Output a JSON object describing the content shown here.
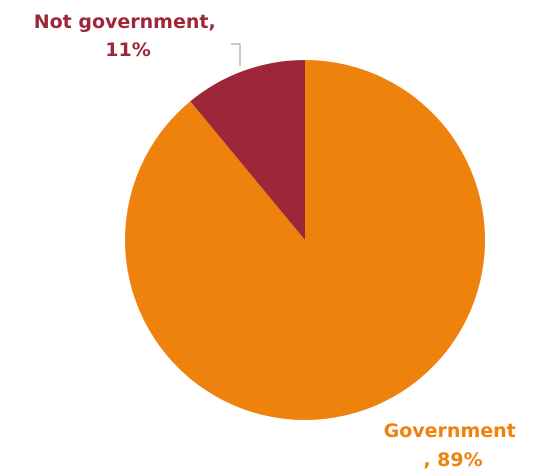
{
  "chart_data": {
    "type": "pie",
    "title": "",
    "categories": [
      "Government",
      "Not government"
    ],
    "values": [
      89,
      11
    ],
    "unit": "%",
    "colors": [
      "#EE820C",
      "#9E2639"
    ],
    "label_colors": [
      "#EE820C",
      "#9E2639"
    ],
    "data_labels": [
      {
        "line1": "Government",
        "line2": ", 89%"
      },
      {
        "line1": "Not government,",
        "line2": "11%"
      }
    ],
    "start_angle": "12 o'clock",
    "direction": "clockwise",
    "legend": "none",
    "leader_line_color": "#A6A6A6"
  }
}
